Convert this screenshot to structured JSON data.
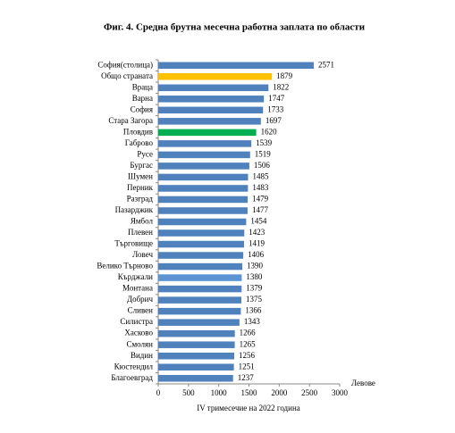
{
  "chart_data": {
    "type": "hbar",
    "title": "Фиг. 4. Средна брутна месечна работна заплата по области",
    "x_label": "IV тримесечие на 2022 година",
    "unit_label": "Левове",
    "categories": [
      "София(столица)",
      "Общо страната",
      "Враца",
      "Варна",
      "София",
      "Стара Загора",
      "Пловдив",
      "Габрово",
      "Русе",
      "Бургас",
      "Шумен",
      "Перник",
      "Разград",
      "Пазарджик",
      "Ямбол",
      "Плевен",
      "Търговище",
      "Ловеч",
      "Велико Търново",
      "Кърджали",
      "Монтана",
      "Добрич",
      "Сливен",
      "Силистра",
      "Хасково",
      "Смолян",
      "Видин",
      "Кюстендил",
      "Благоевград"
    ],
    "values": [
      2571,
      1879,
      1822,
      1747,
      1733,
      1697,
      1620,
      1539,
      1519,
      1506,
      1485,
      1483,
      1479,
      1477,
      1454,
      1423,
      1419,
      1406,
      1390,
      1380,
      1379,
      1375,
      1366,
      1343,
      1266,
      1265,
      1256,
      1251,
      1237
    ],
    "colors": [
      "#4f81bd",
      "#ffc000",
      "#4f81bd",
      "#4f81bd",
      "#4f81bd",
      "#4f81bd",
      "#00b050",
      "#4f81bd",
      "#4f81bd",
      "#4f81bd",
      "#4f81bd",
      "#4f81bd",
      "#4f81bd",
      "#4f81bd",
      "#4f81bd",
      "#4f81bd",
      "#4f81bd",
      "#4f81bd",
      "#4f81bd",
      "#5b93d3",
      "#4f81bd",
      "#4f81bd",
      "#4f81bd",
      "#4f81bd",
      "#4f81bd",
      "#4f81bd",
      "#4f81bd",
      "#4f81bd",
      "#4f81bd"
    ],
    "xlim": [
      0,
      3000
    ],
    "xticks": [
      0,
      500,
      1000,
      1500,
      2000,
      2500,
      3000
    ]
  }
}
